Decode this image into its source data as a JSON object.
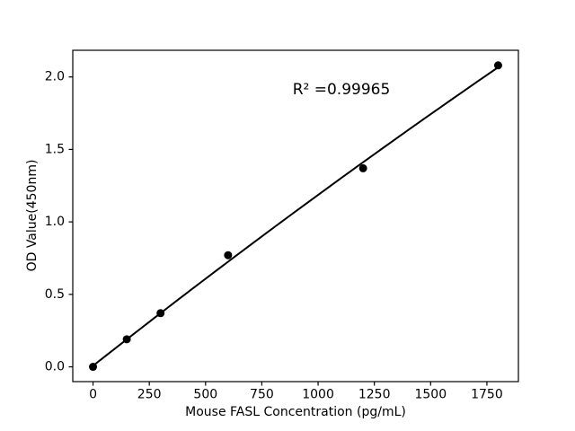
{
  "figure": {
    "background_color": "#ffffff",
    "foreground_color": "#000000"
  },
  "chart_data": {
    "type": "scatter",
    "title": "",
    "xlabel": "Mouse FASL Concentration (pg/mL)",
    "ylabel": "OD Value(450nm)",
    "annotation": "R² =0.99965",
    "r_squared": 0.99965,
    "points": [
      {
        "x": 0,
        "y": 0.0
      },
      {
        "x": 150,
        "y": 0.19
      },
      {
        "x": 300,
        "y": 0.37
      },
      {
        "x": 600,
        "y": 0.77
      },
      {
        "x": 1200,
        "y": 1.37
      },
      {
        "x": 1800,
        "y": 2.08
      }
    ],
    "fit_line": {
      "poly_coeffs": [
        0.00719,
        0.0012228,
        -4.373e-08
      ],
      "x_range": [
        0,
        1800
      ]
    },
    "x_ticks": [
      0,
      250,
      500,
      750,
      1000,
      1250,
      1500,
      1750
    ],
    "y_ticks": [
      0.0,
      0.5,
      1.0,
      1.5,
      2.0
    ],
    "y_tick_decimals": 1,
    "xlim": [
      -90,
      1890
    ],
    "ylim": [
      -0.102,
      2.184
    ],
    "grid": false,
    "legend_position": "none",
    "marker_color": "#000000",
    "line_color": "#000000",
    "axis_color": "#000000"
  }
}
